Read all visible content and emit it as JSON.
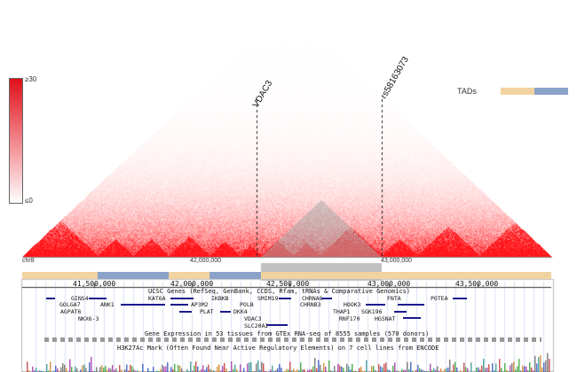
{
  "scale": {
    "max_label": "≥30",
    "min_label": "≤0",
    "max_color": "#e0101a",
    "min_color": "#ffffff"
  },
  "annotations": {
    "left": "VDAC3",
    "right": "rs58163073"
  },
  "tads_legend": {
    "label": "TADs",
    "color_a": "#f1d3a0",
    "color_b": "#8ba3c9"
  },
  "ruler": {
    "chrom": "chr8",
    "ticks": [
      "41,500,000",
      "42,000,000",
      "42,500,000",
      "43,000,000",
      "43,500,000"
    ]
  },
  "top_axis": {
    "ticks": [
      "42,000,000",
      "43,000,000"
    ]
  },
  "tracks": {
    "ucsc_genes": "UCSC Genes (RefSeq, GenBank, CCDS, Rfam, tRNAs & Comparative Genomics)",
    "gtex": "Gene Expression in 53 tissues from GTEx RNA-seq of 8555 samples (570 donors)",
    "h3k27ac": "H3K27Ac Mark (Often Found Near Active Regulatory Elements) on 7 cell lines from ENCODE"
  },
  "genes": [
    "GINS4",
    "GOLGA7",
    "ANK1",
    "AGPAT6",
    "NKX6-3",
    "KAT6A",
    "IKBKB",
    "AP3M2",
    "PLAT",
    "POLB",
    "DKK4",
    "VDAC3",
    "SLC20A2",
    "SMIM19",
    "CHRNA6",
    "CHRNB3",
    "THAP1",
    "RNF170",
    "HOOK3",
    "FNTA",
    "SGK196",
    "HGSNAT",
    "POTEA"
  ],
  "chart_data": {
    "type": "heatmap",
    "title": "",
    "matrix": "Hi-C contact map (triangle)",
    "color_range": [
      "≤0",
      "≥30"
    ],
    "region": {
      "chrom": "chr8",
      "start": 41300000,
      "end": 43700000
    },
    "markers": [
      {
        "name": "VDAC3",
        "position": 42250000
      },
      {
        "name": "rs58163073",
        "position": 43000000
      }
    ],
    "tads": [
      {
        "start": 41300000,
        "end": 41580000,
        "color": "a"
      },
      {
        "start": 41580000,
        "end": 41970000,
        "color": "b"
      },
      {
        "start": 41970000,
        "end": 42100000,
        "color": "a"
      },
      {
        "start": 42100000,
        "end": 42320000,
        "color": "b"
      },
      {
        "start": 42320000,
        "end": 42380000,
        "color": "a"
      },
      {
        "start": 42380000,
        "end": 43700000,
        "color": "a"
      }
    ],
    "highlight": {
      "start": 42380000,
      "end": 43000000
    }
  }
}
